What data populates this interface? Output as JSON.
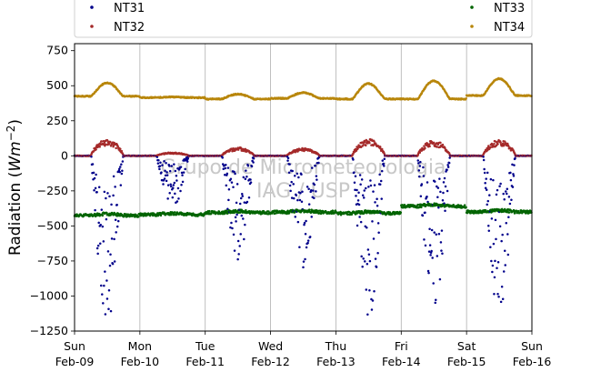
{
  "chart_data": {
    "type": "scatter",
    "title": "",
    "ylabel": "Radiation (W m⁻²)",
    "ylabel_parts": {
      "main": "Radiation (",
      "unit": "Wm",
      "exp": "−2",
      "close": ")"
    },
    "xlabel": "",
    "ylim": [
      -1250,
      800
    ],
    "xlim": [
      "2020-02-09",
      "2020-02-16"
    ],
    "yticks": [
      -1250,
      -1000,
      -750,
      -500,
      -250,
      0,
      250,
      500,
      750
    ],
    "ytick_labels": [
      "−1250",
      "−1000",
      "−750",
      "−500",
      "−250",
      "0",
      "250",
      "500",
      "750"
    ],
    "xticks": [
      {
        "date": "2020-02-09",
        "day": "Sun",
        "label": "Feb-09"
      },
      {
        "date": "2020-02-10",
        "day": "Mon",
        "label": "Feb-10"
      },
      {
        "date": "2020-02-11",
        "day": "Tue",
        "label": "Feb-11"
      },
      {
        "date": "2020-02-12",
        "day": "Wed",
        "label": "Feb-12"
      },
      {
        "date": "2020-02-13",
        "day": "Thu",
        "label": "Feb-13"
      },
      {
        "date": "2020-02-14",
        "day": "Fri",
        "label": "Feb-14"
      },
      {
        "date": "2020-02-15",
        "day": "Sat",
        "label": "Feb-15"
      },
      {
        "date": "2020-02-16",
        "day": "Sun",
        "label": "Feb-16"
      }
    ],
    "grid": "vertical",
    "watermark": [
      "Grupo de Micrometeorologia",
      "IAG / USP"
    ],
    "legend": {
      "placement": "top",
      "columns": 2
    },
    "series": [
      {
        "name": "NT31",
        "color": "#00008b",
        "nighttime_value": 0,
        "daily_min": [
          -1200,
          -380,
          -750,
          -810,
          -1170,
          -1100,
          -1140
        ]
      },
      {
        "name": "NT32",
        "color": "#a52a2a",
        "nighttime_value": 0,
        "daily_max": [
          120,
          25,
          60,
          55,
          120,
          110,
          115
        ]
      },
      {
        "name": "NT33",
        "color": "#006400",
        "daily_mean": [
          -425,
          -420,
          -405,
          -402,
          -410,
          -360,
          -400
        ]
      },
      {
        "name": "NT34",
        "color": "#b8860b",
        "daily_min": [
          425,
          415,
          405,
          410,
          405,
          405,
          430
        ],
        "daily_max": [
          520,
          420,
          440,
          450,
          515,
          535,
          550
        ]
      }
    ]
  }
}
